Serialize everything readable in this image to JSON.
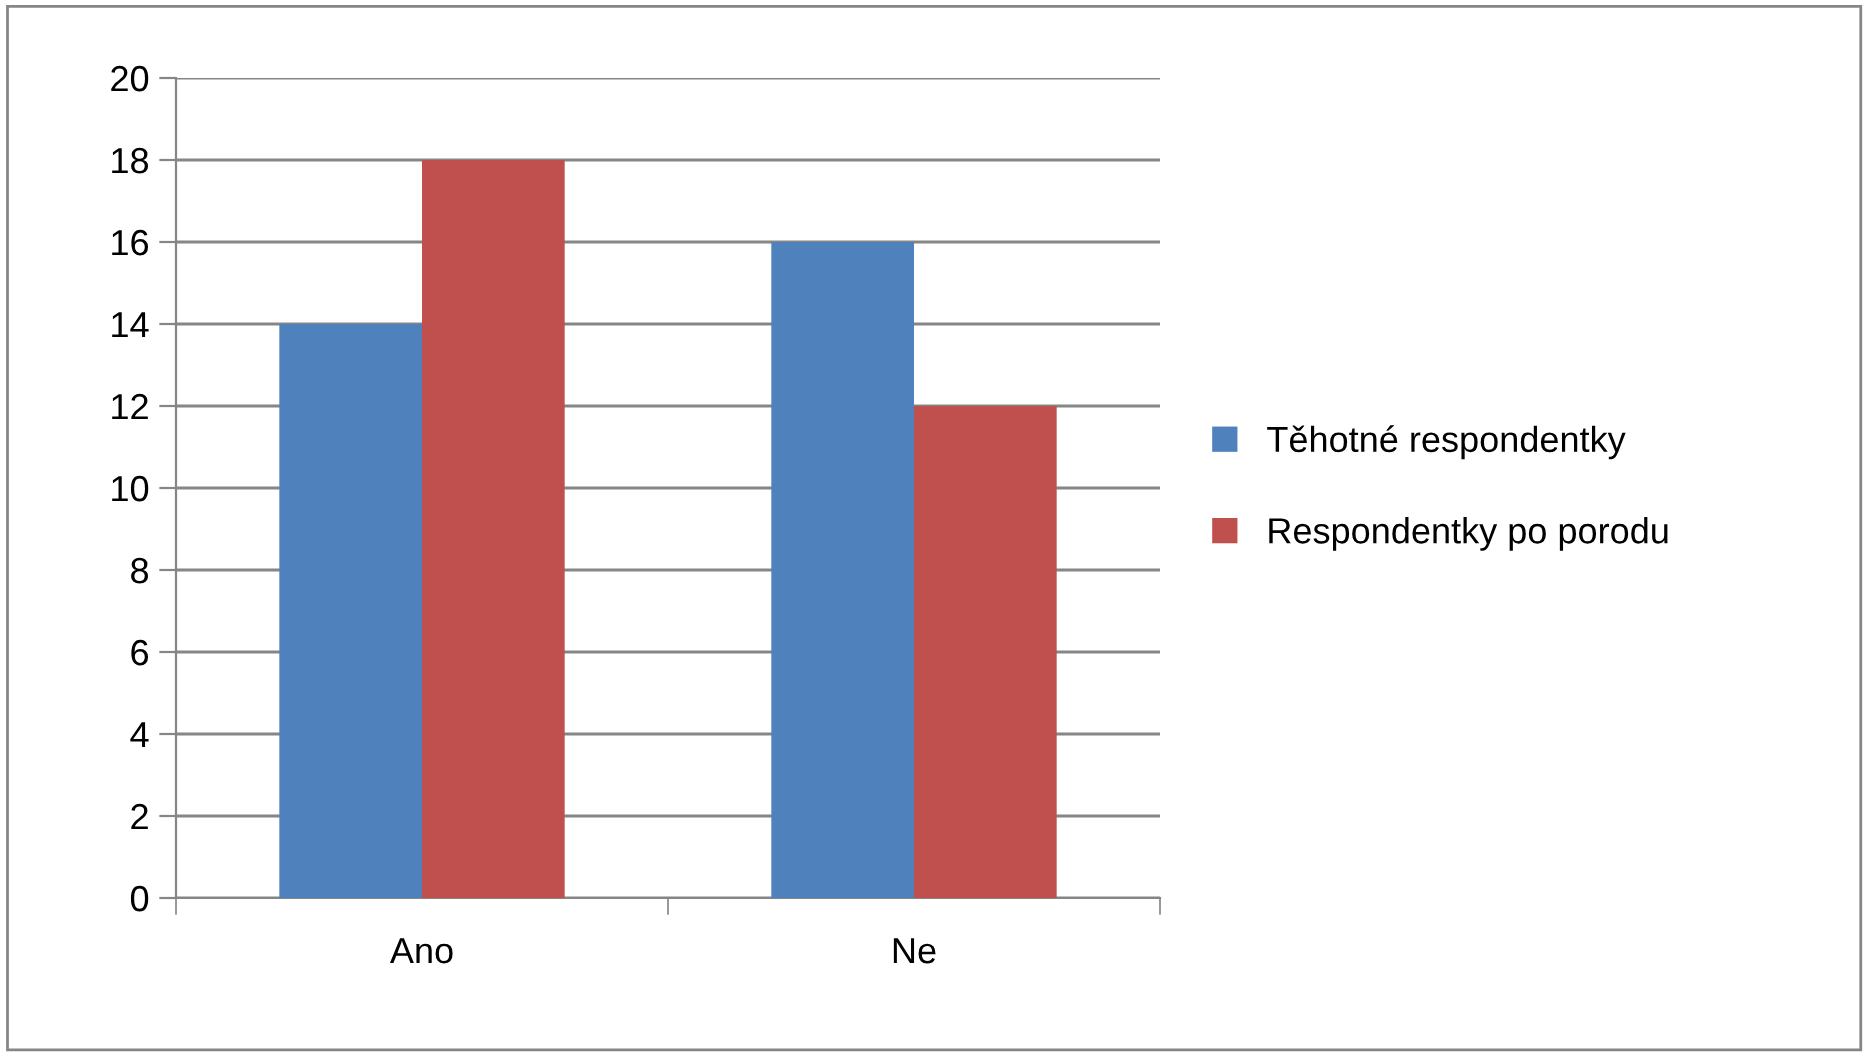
{
  "chart_data": {
    "type": "bar",
    "categories": [
      "Ano",
      "Ne"
    ],
    "series": [
      {
        "name": "Těhotné respondentky",
        "color": "#4f81bd",
        "values": [
          14,
          16
        ]
      },
      {
        "name": "Respondentky po porodu",
        "color": "#c0504d",
        "values": [
          18,
          12
        ]
      }
    ],
    "ylim": [
      0,
      20
    ],
    "yticks": [
      0,
      2,
      4,
      6,
      8,
      10,
      12,
      14,
      16,
      18,
      20
    ],
    "grid": "y",
    "legend": "right"
  }
}
